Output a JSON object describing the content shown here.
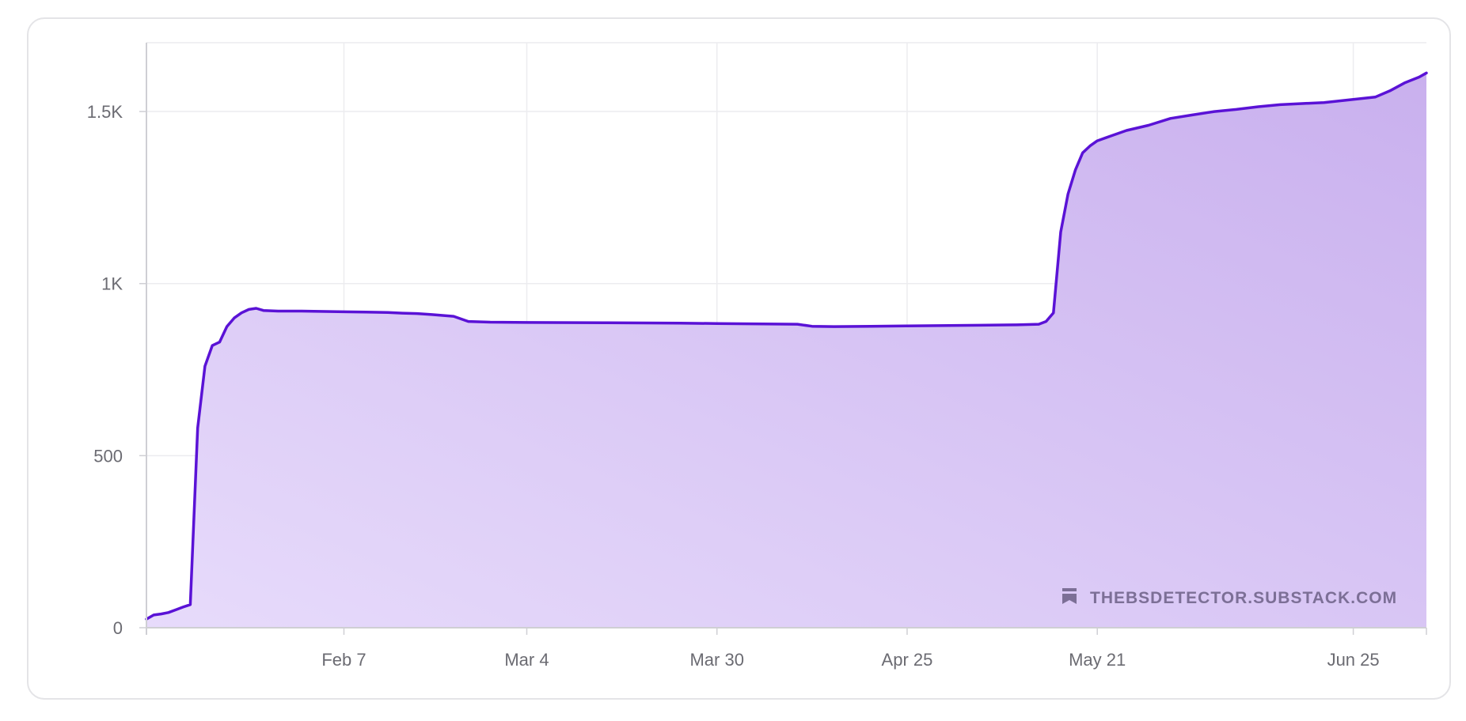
{
  "watermark": {
    "text": "THEBSDETECTOR.SUBSTACK.COM",
    "icon": "bookmark-icon"
  },
  "colors": {
    "line": "#5a12d6",
    "fill_light": "#e7dbfb",
    "fill_dark": "#c9b0ee",
    "grid": "#ececef",
    "axis": "#cfcfd4",
    "tick_text": "#6b6b72",
    "card_border": "#e4e4e7"
  },
  "chart_data": {
    "type": "area",
    "title": "",
    "xlabel": "",
    "ylabel": "",
    "ylim": [
      0,
      1700
    ],
    "xlim": [
      "2023-01-11",
      "2023-07-05"
    ],
    "grid": true,
    "legend": "none",
    "y_ticks": [
      {
        "value": 0,
        "label": "0"
      },
      {
        "value": 500,
        "label": "500"
      },
      {
        "value": 1000,
        "label": "1K"
      },
      {
        "value": 1500,
        "label": "1.5K"
      }
    ],
    "x_ticks": [
      {
        "date": "2023-02-07",
        "label": "Feb 7"
      },
      {
        "date": "2023-03-04",
        "label": "Mar 4"
      },
      {
        "date": "2023-03-30",
        "label": "Mar 30"
      },
      {
        "date": "2023-04-25",
        "label": "Apr 25"
      },
      {
        "date": "2023-05-21",
        "label": "May 21"
      },
      {
        "date": "2023-06-25",
        "label": "Jun 25"
      }
    ],
    "series": [
      {
        "points": [
          [
            "2023-01-11",
            25
          ],
          [
            "2023-01-12",
            37
          ],
          [
            "2023-01-13",
            40
          ],
          [
            "2023-01-14",
            44
          ],
          [
            "2023-01-15",
            52
          ],
          [
            "2023-01-16",
            60
          ],
          [
            "2023-01-17",
            67
          ],
          [
            "2023-01-18",
            580
          ],
          [
            "2023-01-19",
            760
          ],
          [
            "2023-01-20",
            820
          ],
          [
            "2023-01-21",
            830
          ],
          [
            "2023-01-22",
            875
          ],
          [
            "2023-01-23",
            900
          ],
          [
            "2023-01-24",
            915
          ],
          [
            "2023-01-25",
            925
          ],
          [
            "2023-01-26",
            928
          ],
          [
            "2023-01-27",
            922
          ],
          [
            "2023-01-29",
            920
          ],
          [
            "2023-02-01",
            920
          ],
          [
            "2023-02-07",
            918
          ],
          [
            "2023-02-10",
            917
          ],
          [
            "2023-02-13",
            916
          ],
          [
            "2023-02-15",
            914
          ],
          [
            "2023-02-17",
            913
          ],
          [
            "2023-02-19",
            910
          ],
          [
            "2023-02-22",
            905
          ],
          [
            "2023-02-24",
            890
          ],
          [
            "2023-02-27",
            888
          ],
          [
            "2023-03-04",
            887
          ],
          [
            "2023-03-15",
            886
          ],
          [
            "2023-03-25",
            885
          ],
          [
            "2023-03-30",
            884
          ],
          [
            "2023-04-10",
            882
          ],
          [
            "2023-04-12",
            876
          ],
          [
            "2023-04-15",
            875
          ],
          [
            "2023-04-20",
            876
          ],
          [
            "2023-04-25",
            877
          ],
          [
            "2023-05-05",
            879
          ],
          [
            "2023-05-10",
            880
          ],
          [
            "2023-05-13",
            882
          ],
          [
            "2023-05-14",
            890
          ],
          [
            "2023-05-15",
            915
          ],
          [
            "2023-05-16",
            1150
          ],
          [
            "2023-05-17",
            1260
          ],
          [
            "2023-05-18",
            1330
          ],
          [
            "2023-05-19",
            1380
          ],
          [
            "2023-05-20",
            1400
          ],
          [
            "2023-05-21",
            1415
          ],
          [
            "2023-05-23",
            1430
          ],
          [
            "2023-05-25",
            1445
          ],
          [
            "2023-05-28",
            1460
          ],
          [
            "2023-05-31",
            1480
          ],
          [
            "2023-06-03",
            1490
          ],
          [
            "2023-06-06",
            1500
          ],
          [
            "2023-06-09",
            1506
          ],
          [
            "2023-06-12",
            1514
          ],
          [
            "2023-06-15",
            1520
          ],
          [
            "2023-06-18",
            1523
          ],
          [
            "2023-06-21",
            1526
          ],
          [
            "2023-06-25",
            1535
          ],
          [
            "2023-06-28",
            1542
          ],
          [
            "2023-06-30",
            1560
          ],
          [
            "2023-07-02",
            1583
          ],
          [
            "2023-07-04",
            1600
          ],
          [
            "2023-07-05",
            1612
          ]
        ]
      }
    ]
  }
}
